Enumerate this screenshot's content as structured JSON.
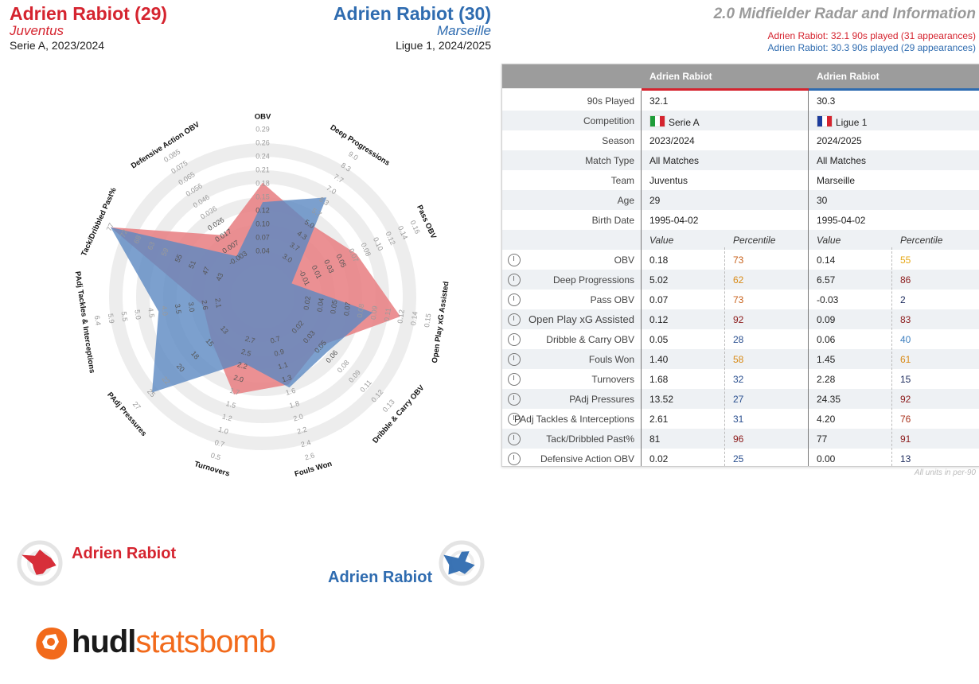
{
  "header": {
    "player1": {
      "name": "Adrien Rabiot (29)",
      "team": "Juventus",
      "competition": "Serie A, 2023/2024"
    },
    "player2": {
      "name": "Adrien Rabiot (30)",
      "team": "Marseille",
      "competition": "Ligue 1, 2024/2025"
    },
    "title": "2.0 Midfielder Radar and Information",
    "subtitle1": "Adrien Rabiot: 32.1 90s played (31 appearances)",
    "subtitle2": "Adrien Rabiot: 30.3 90s played (29 appearances)"
  },
  "colors": {
    "player1": "#d5242f",
    "player2": "#2f6cb0",
    "fill1": "#e77c80",
    "fill2": "#5b88c2",
    "brand": "#f26a1b"
  },
  "legend": {
    "player1": "Adrien Rabiot",
    "player2": "Adrien Rabiot"
  },
  "brand": {
    "part1": "hudl",
    "part2": "statsbomb"
  },
  "chart_data": {
    "type": "radar",
    "axes": [
      {
        "name": "OBV",
        "ticks": [
          "0.04",
          "0.07",
          "0.10",
          "0.12",
          "0.15",
          "0.18",
          "0.21",
          "0.24",
          "0.26",
          "0.29"
        ],
        "range": [
          0.01,
          0.29
        ]
      },
      {
        "name": "Deep Progressions",
        "ticks": [
          "3.0",
          "3.7",
          "4.3",
          "5.0",
          "5.7",
          "6.3",
          "7.0",
          "7.7",
          "8.3",
          "9.0"
        ],
        "range": [
          2.3,
          9.0
        ]
      },
      {
        "name": "Pass OBV",
        "ticks": [
          "-0.01",
          "0.01",
          "0.03",
          "0.05",
          "0.07",
          "0.08",
          "0.10",
          "0.12",
          "0.14",
          "0.16"
        ],
        "range": [
          -0.03,
          0.16
        ]
      },
      {
        "name": "Open Play xG Assisted",
        "ticks": [
          "0.02",
          "0.04",
          "0.05",
          "0.07",
          "0.08",
          "0.09",
          "0.11",
          "0.12",
          "0.14",
          "0.15"
        ],
        "range": [
          0.005,
          0.15
        ]
      },
      {
        "name": "Dribble & Carry OBV",
        "ticks": [
          "0.02",
          "0.03",
          "0.05",
          "0.06",
          "0.08",
          "0.09",
          "0.11",
          "0.12",
          "0.13"
        ],
        "range": [
          0.005,
          0.145
        ]
      },
      {
        "name": "Fouls Won",
        "ticks": [
          "0.7",
          "0.9",
          "1.1",
          "1.3",
          "1.6",
          "1.8",
          "2.0",
          "2.2",
          "2.4",
          "2.6"
        ],
        "range": [
          0.45,
          2.6
        ]
      },
      {
        "name": "Turnovers",
        "ticks": [
          "2.7",
          "2.5",
          "2.2",
          "2.0",
          "1.7",
          "1.5",
          "1.2",
          "1.0",
          "0.7",
          "0.5"
        ],
        "range": [
          2.95,
          0.5
        ]
      },
      {
        "name": "PAdj Pressures",
        "ticks": [
          "13",
          "15",
          "18",
          "20",
          "22",
          "25",
          "27"
        ],
        "range": [
          8.6,
          27.2
        ]
      },
      {
        "name": "PAdj Tackles & Interceptions",
        "ticks": [
          "2.1",
          "2.6",
          "3.0",
          "3.5",
          "4.0",
          "4.5",
          "5.0",
          "5.5",
          "5.9",
          "6.4"
        ],
        "range": [
          1.6,
          6.4
        ]
      },
      {
        "name": "Tack/Dribbled Past%",
        "ticks": [
          "43",
          "47",
          "51",
          "55",
          "59",
          "63",
          "68",
          "72",
          "77"
        ],
        "range": [
          39,
          77
        ]
      },
      {
        "name": "Defensive Action OBV",
        "ticks": [
          "-0.003",
          "0.007",
          "0.017",
          "0.026",
          "0.036",
          "0.046",
          "0.056",
          "0.065",
          "0.075",
          "0.085"
        ],
        "range": [
          -0.013,
          0.095
        ]
      }
    ],
    "series": [
      {
        "name": "Adrien Rabiot",
        "values": [
          0.18,
          5.02,
          0.07,
          0.12,
          0.05,
          1.4,
          1.68,
          13.52,
          2.61,
          81,
          0.02
        ]
      },
      {
        "name": "Adrien Rabiot",
        "values": [
          0.14,
          6.57,
          -0.03,
          0.09,
          0.06,
          1.45,
          2.28,
          24.35,
          4.2,
          77,
          0.0
        ]
      }
    ]
  },
  "table": {
    "col1": "Adrien Rabiot",
    "col2": "Adrien Rabiot",
    "info": [
      {
        "label": "90s Played",
        "v1": "32.1",
        "v2": "30.3"
      },
      {
        "label": "Competition",
        "v1": "Serie A",
        "v2": "Ligue 1"
      },
      {
        "label": "Season",
        "v1": "2023/2024",
        "v2": "2024/2025"
      },
      {
        "label": "Match Type",
        "v1": "All Matches",
        "v2": "All Matches"
      },
      {
        "label": "Team",
        "v1": "Juventus",
        "v2": "Marseille"
      },
      {
        "label": "Age",
        "v1": "29",
        "v2": "30"
      },
      {
        "label": "Birth Date",
        "v1": "1995-04-02",
        "v2": "1995-04-02"
      }
    ],
    "value_header": "Value",
    "percentile_header": "Percentile",
    "metrics": [
      {
        "label": "OBV",
        "v1": "0.18",
        "p1": "73",
        "c1": "#c8621c",
        "v2": "0.14",
        "p2": "55",
        "c2": "#e6a817"
      },
      {
        "label": "Deep Progressions",
        "v1": "5.02",
        "p1": "62",
        "c1": "#d98a16",
        "v2": "6.57",
        "p2": "86",
        "c2": "#8b1a1a"
      },
      {
        "label": "Pass OBV",
        "v1": "0.07",
        "p1": "73",
        "c1": "#c8621c",
        "v2": "-0.03",
        "p2": "2",
        "c2": "#1b2a5c"
      },
      {
        "label": "Open Play xG Assisted",
        "v1": "0.12",
        "p1": "92",
        "c1": "#8b1a1a",
        "v2": "0.09",
        "p2": "83",
        "c2": "#8b1a1a"
      },
      {
        "label": "Dribble & Carry OBV",
        "v1": "0.05",
        "p1": "28",
        "c1": "#2a4f8f",
        "v2": "0.06",
        "p2": "40",
        "c2": "#3d7fbf"
      },
      {
        "label": "Fouls Won",
        "v1": "1.40",
        "p1": "58",
        "c1": "#d98a16",
        "v2": "1.45",
        "p2": "61",
        "c2": "#d98a16"
      },
      {
        "label": "Turnovers",
        "v1": "1.68",
        "p1": "32",
        "c1": "#2a4f8f",
        "v2": "2.28",
        "p2": "15",
        "c2": "#1b2a5c"
      },
      {
        "label": "PAdj Pressures",
        "v1": "13.52",
        "p1": "27",
        "c1": "#2a4f8f",
        "v2": "24.35",
        "p2": "92",
        "c2": "#8b1a1a"
      },
      {
        "label": "PAdj Tackles & Interceptions",
        "v1": "2.61",
        "p1": "31",
        "c1": "#2a4f8f",
        "v2": "4.20",
        "p2": "76",
        "c2": "#a8321c"
      },
      {
        "label": "Tack/Dribbled Past%",
        "v1": "81",
        "p1": "96",
        "c1": "#8b1a1a",
        "v2": "77",
        "p2": "91",
        "c2": "#8b1a1a"
      },
      {
        "label": "Defensive Action OBV",
        "v1": "0.02",
        "p1": "25",
        "c1": "#2a4f8f",
        "v2": "0.00",
        "p2": "13",
        "c2": "#1b2a5c"
      }
    ],
    "footnote": "All units in per-90"
  }
}
